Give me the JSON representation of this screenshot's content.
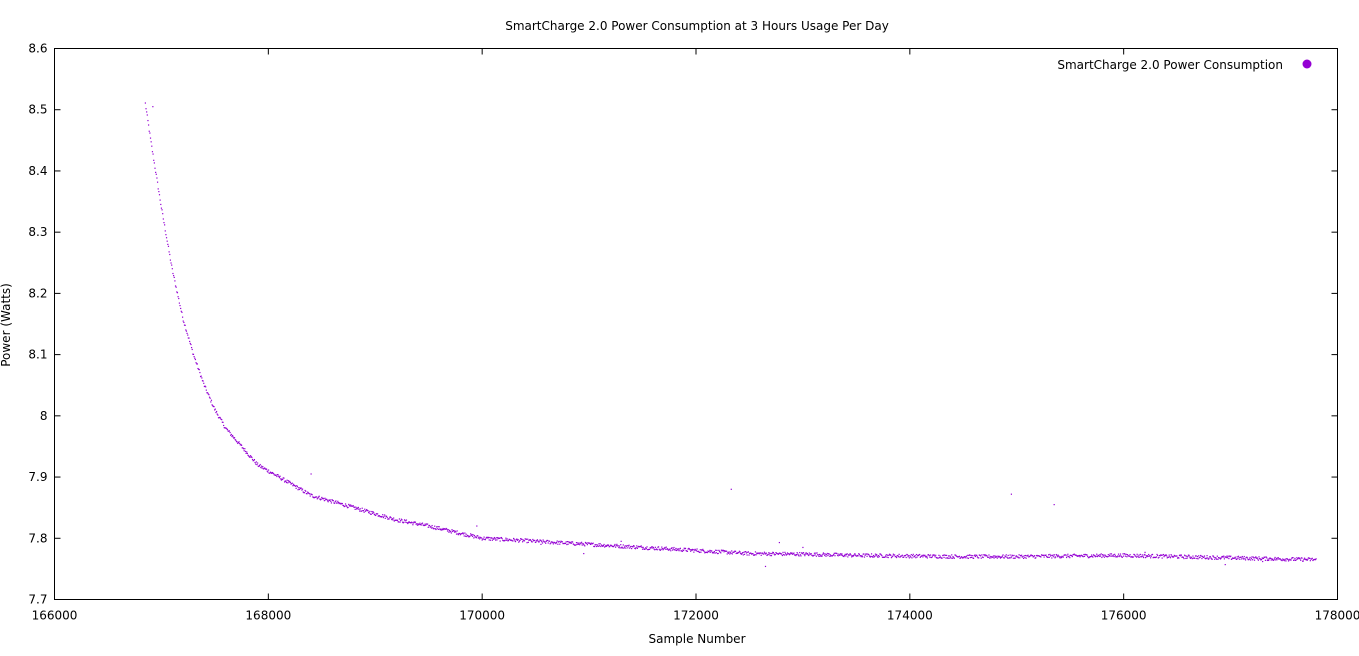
{
  "chart_data": {
    "type": "scatter",
    "title": "SmartCharge 2.0 Power Consumption at 3 Hours Usage Per Day",
    "xlabel": "Sample Number",
    "ylabel": "Power (Watts)",
    "xlim": [
      166000,
      178000
    ],
    "ylim": [
      7.7,
      8.6
    ],
    "x_ticks": [
      "166000",
      "168000",
      "170000",
      "172000",
      "174000",
      "176000",
      "178000"
    ],
    "y_ticks": [
      "7.7",
      "7.8",
      "7.9",
      "8",
      "8.1",
      "8.2",
      "8.3",
      "8.4",
      "8.5",
      "8.6"
    ],
    "grid": false,
    "legend": {
      "position": "top-right",
      "entries": [
        "SmartCharge 2.0 Power Consumption"
      ]
    },
    "colors": {
      "series": "#9400d3"
    },
    "series": [
      {
        "name": "SmartCharge 2.0 Power Consumption",
        "x": [
          166850,
          166900,
          167000,
          167100,
          167200,
          167300,
          167400,
          167500,
          167600,
          167700,
          167800,
          167900,
          168000,
          168200,
          168400,
          168600,
          168800,
          169000,
          169200,
          169500,
          170000,
          170500,
          171000,
          171500,
          172000,
          172500,
          173000,
          173500,
          174000,
          174500,
          175000,
          175500,
          176000,
          176500,
          177000,
          177500,
          177800
        ],
        "y": [
          8.51,
          8.45,
          8.34,
          8.24,
          8.16,
          8.1,
          8.05,
          8.01,
          7.98,
          7.96,
          7.94,
          7.92,
          7.91,
          7.89,
          7.87,
          7.86,
          7.85,
          7.84,
          7.83,
          7.82,
          7.8,
          7.795,
          7.79,
          7.785,
          7.78,
          7.775,
          7.774,
          7.772,
          7.771,
          7.77,
          7.77,
          7.771,
          7.772,
          7.77,
          7.768,
          7.766,
          7.765
        ]
      }
    ],
    "outliers": {
      "x": [
        166920,
        168400,
        169950,
        170550,
        170950,
        171300,
        172330,
        172650,
        172780,
        173000,
        174950,
        175350,
        176200,
        176950,
        177300
      ],
      "y": [
        8.505,
        7.905,
        7.82,
        7.79,
        7.775,
        7.795,
        7.88,
        7.754,
        7.793,
        7.785,
        7.872,
        7.855,
        7.777,
        7.757,
        7.762
      ]
    }
  }
}
